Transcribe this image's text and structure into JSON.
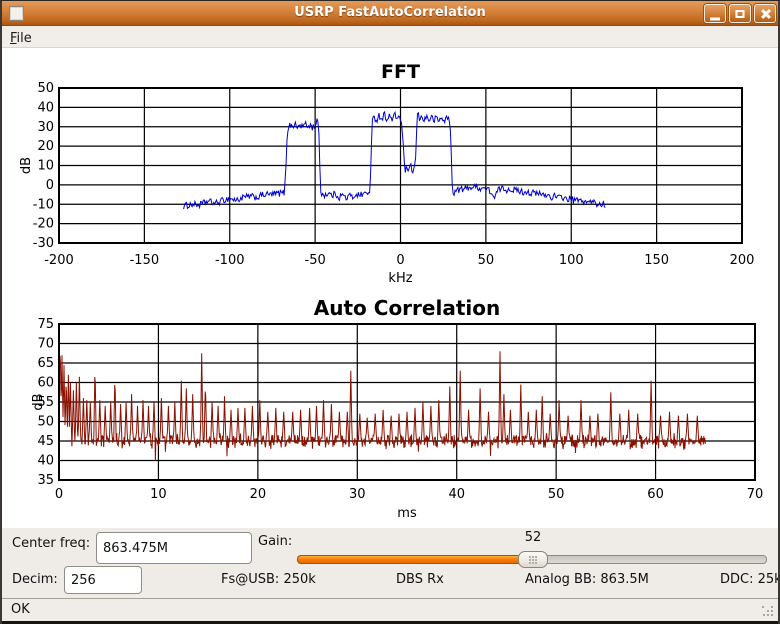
{
  "window": {
    "title": "USRP FastAutoCorrelation",
    "buttons": {
      "minimize": "minimize",
      "maximize": "maximize",
      "close": "close"
    }
  },
  "menu": {
    "file_label": "File"
  },
  "chart_data": [
    {
      "type": "line",
      "id": "fft",
      "title": "FFT",
      "xlabel": "kHz",
      "ylabel": "dB",
      "xlim": [
        -200,
        200
      ],
      "ylim": [
        -30,
        50
      ],
      "xticks": [
        -200,
        -150,
        -100,
        -50,
        0,
        50,
        100,
        150,
        200
      ],
      "yticks": [
        50,
        40,
        30,
        20,
        10,
        0,
        -10,
        -20,
        -30
      ],
      "grid": true,
      "color": "#0000cc",
      "gen": {
        "mode": "envelope",
        "x_start": -127,
        "x_end": 120,
        "step": 0.55,
        "noise": 1.7,
        "seed": 1234,
        "envelope": [
          [
            -127,
            -11
          ],
          [
            -122,
            -10
          ],
          [
            -118,
            -10.5
          ],
          [
            -113,
            -8.5
          ],
          [
            -108,
            -9.5
          ],
          [
            -104,
            -8
          ],
          [
            -100,
            -7
          ],
          [
            -96,
            -8
          ],
          [
            -92,
            -6.5
          ],
          [
            -88,
            -6
          ],
          [
            -84,
            -6.5
          ],
          [
            -80,
            -5
          ],
          [
            -76,
            -5
          ],
          [
            -72,
            -4.5
          ],
          [
            -68,
            -4
          ],
          [
            -67.3,
            5
          ],
          [
            -66.5,
            24
          ],
          [
            -66,
            29
          ],
          [
            -65,
            31
          ],
          [
            -63.5,
            30
          ],
          [
            -62,
            31.5
          ],
          [
            -60.5,
            29.5
          ],
          [
            -59,
            31
          ],
          [
            -57.5,
            30
          ],
          [
            -56,
            31.5
          ],
          [
            -54.5,
            30
          ],
          [
            -53,
            31
          ],
          [
            -51.5,
            29.5
          ],
          [
            -50,
            31
          ],
          [
            -48.8,
            33.5
          ],
          [
            -48,
            30
          ],
          [
            -47.4,
            15
          ],
          [
            -46.8,
            -2
          ],
          [
            -46.2,
            -5
          ],
          [
            -44,
            -5
          ],
          [
            -42,
            -4.5
          ],
          [
            -40,
            -5.5
          ],
          [
            -38,
            -4.5
          ],
          [
            -36,
            -6.5
          ],
          [
            -34,
            -5
          ],
          [
            -32,
            -7
          ],
          [
            -30,
            -5.5
          ],
          [
            -28,
            -6.5
          ],
          [
            -26,
            -4.5
          ],
          [
            -24,
            -5.5
          ],
          [
            -22,
            -4.5
          ],
          [
            -20,
            -4.5
          ],
          [
            -18.2,
            -4
          ],
          [
            -17.4,
            6
          ],
          [
            -16.9,
            25
          ],
          [
            -16.4,
            33
          ],
          [
            -15.5,
            35
          ],
          [
            -14,
            33.5
          ],
          [
            -12.5,
            36
          ],
          [
            -11,
            34
          ],
          [
            -9.5,
            36.5
          ],
          [
            -8,
            34
          ],
          [
            -6.5,
            35.5
          ],
          [
            -5,
            33.5
          ],
          [
            -3.5,
            36
          ],
          [
            -2,
            34.5
          ],
          [
            -0.8,
            35.5
          ],
          [
            0.2,
            34
          ],
          [
            0.9,
            29
          ],
          [
            1.5,
            21
          ],
          [
            2.2,
            12
          ],
          [
            3,
            6.5
          ],
          [
            3.8,
            9.5
          ],
          [
            4.6,
            5.5
          ],
          [
            5.4,
            8
          ],
          [
            6.2,
            10
          ],
          [
            7,
            6.5
          ],
          [
            8,
            8
          ],
          [
            8.8,
            13
          ],
          [
            9.4,
            26
          ],
          [
            10,
            38.5
          ],
          [
            10.6,
            35
          ],
          [
            11.6,
            33.8
          ],
          [
            12.8,
            35.5
          ],
          [
            14,
            33.5
          ],
          [
            15.4,
            35.2
          ],
          [
            16.8,
            33.5
          ],
          [
            18.2,
            34.8
          ],
          [
            19.6,
            33.2
          ],
          [
            21,
            34.6
          ],
          [
            22.4,
            33
          ],
          [
            23.8,
            34.5
          ],
          [
            25.2,
            33.2
          ],
          [
            26.6,
            34
          ],
          [
            27.8,
            35
          ],
          [
            28.8,
            32
          ],
          [
            29.4,
            26
          ],
          [
            29.9,
            10
          ],
          [
            30.4,
            -2.5
          ],
          [
            31.2,
            -4
          ],
          [
            33,
            -3
          ],
          [
            35,
            -2
          ],
          [
            37,
            -2.5
          ],
          [
            39,
            -1.5
          ],
          [
            41,
            -1
          ],
          [
            43,
            -1.5
          ],
          [
            45,
            -0.8
          ],
          [
            47,
            -2
          ],
          [
            49,
            -1.5
          ],
          [
            51,
            -2.5
          ],
          [
            53,
            -3.5
          ],
          [
            54.6,
            -6.5
          ],
          [
            55.4,
            -7.5
          ],
          [
            56.2,
            -4
          ],
          [
            58,
            -2
          ],
          [
            60,
            -2
          ],
          [
            62,
            -2.5
          ],
          [
            64,
            -2
          ],
          [
            66,
            -2.5
          ],
          [
            68,
            -3
          ],
          [
            70,
            -3
          ],
          [
            72,
            -4
          ],
          [
            74,
            -3
          ],
          [
            76,
            -4.5
          ],
          [
            78,
            -4
          ],
          [
            80,
            -5
          ],
          [
            82,
            -4.5
          ],
          [
            84,
            -5.5
          ],
          [
            86,
            -5
          ],
          [
            88,
            -6.5
          ],
          [
            90,
            -5.5
          ],
          [
            92,
            -7
          ],
          [
            94,
            -6
          ],
          [
            96,
            -7
          ],
          [
            98,
            -7.5
          ],
          [
            100,
            -7
          ],
          [
            102,
            -8.5
          ],
          [
            104,
            -7.5
          ],
          [
            106,
            -9
          ],
          [
            108,
            -8
          ],
          [
            110,
            -9.5
          ],
          [
            112,
            -8.5
          ],
          [
            114,
            -9.5
          ],
          [
            116,
            -10.5
          ],
          [
            118,
            -9.5
          ],
          [
            120,
            -10.5
          ]
        ]
      }
    },
    {
      "type": "line",
      "id": "autocorr",
      "title": "Auto Correlation",
      "xlabel": "ms",
      "ylabel": "dB",
      "xlim": [
        0,
        70
      ],
      "ylim": [
        35,
        75
      ],
      "xticks": [
        0,
        10,
        20,
        30,
        40,
        50,
        60,
        70
      ],
      "yticks": [
        75,
        70,
        65,
        60,
        55,
        50,
        45,
        40,
        35
      ],
      "grid": true,
      "color": "#8b1000",
      "gen": {
        "mode": "spikes",
        "x_start": 0,
        "x_end": 65,
        "step": 0.05,
        "seed": 99,
        "baseline": 42.8,
        "baseline_spread": 2.2,
        "dip_prob": 0.02,
        "dip_depth": 2.8,
        "decay_peak": 75,
        "decay_tau": 0.28,
        "spike_width": 0.12,
        "spike_base": 46,
        "spikes": [
          [
            0.12,
            71
          ],
          [
            0.3,
            67
          ],
          [
            0.5,
            64.5
          ],
          [
            0.72,
            61.5
          ],
          [
            0.95,
            62
          ],
          [
            1.15,
            60
          ],
          [
            1.45,
            58
          ],
          [
            1.75,
            60
          ],
          [
            2.05,
            61.5
          ],
          [
            2.45,
            56
          ],
          [
            2.8,
            55.5
          ],
          [
            3.15,
            55
          ],
          [
            3.62,
            64.5
          ],
          [
            4.1,
            55.5
          ],
          [
            4.65,
            54
          ],
          [
            5.2,
            55
          ],
          [
            5.62,
            62
          ],
          [
            6.2,
            54.5
          ],
          [
            6.75,
            55
          ],
          [
            7.3,
            57
          ],
          [
            7.9,
            54
          ],
          [
            8.45,
            55.5
          ],
          [
            9.0,
            54
          ],
          [
            9.55,
            55.2
          ],
          [
            10.3,
            56
          ],
          [
            11.0,
            54
          ],
          [
            11.65,
            55
          ],
          [
            12.3,
            60.5
          ],
          [
            12.8,
            58.5
          ],
          [
            13.45,
            57
          ],
          [
            14.35,
            67.5
          ],
          [
            14.72,
            60
          ],
          [
            15.4,
            55
          ],
          [
            16.0,
            54
          ],
          [
            16.65,
            56.5
          ],
          [
            17.3,
            53
          ],
          [
            18.0,
            53.5
          ],
          [
            18.7,
            53.5
          ],
          [
            19.45,
            54
          ],
          [
            20.2,
            55.5
          ],
          [
            21.0,
            52.5
          ],
          [
            21.8,
            53.5
          ],
          [
            22.6,
            52.5
          ],
          [
            23.5,
            52.5
          ],
          [
            24.3,
            53
          ],
          [
            25.2,
            53.5
          ],
          [
            25.9,
            54
          ],
          [
            26.6,
            55.5
          ],
          [
            27.4,
            54.5
          ],
          [
            28.2,
            52.5
          ],
          [
            29.0,
            52.5
          ],
          [
            29.35,
            63
          ],
          [
            30.25,
            52
          ],
          [
            31.0,
            51
          ],
          [
            31.8,
            52
          ],
          [
            32.6,
            53
          ],
          [
            33.4,
            51.5
          ],
          [
            34.2,
            52
          ],
          [
            35.0,
            52.5
          ],
          [
            35.8,
            53.5
          ],
          [
            36.6,
            55
          ],
          [
            37.4,
            54
          ],
          [
            38.2,
            55.5
          ],
          [
            39.3,
            59
          ],
          [
            40.35,
            63
          ],
          [
            41.2,
            53
          ],
          [
            42.35,
            58.5
          ],
          [
            43.2,
            52.5
          ],
          [
            44.35,
            68
          ],
          [
            44.75,
            57
          ],
          [
            45.4,
            53
          ],
          [
            46.45,
            59.5
          ],
          [
            47.2,
            52.5
          ],
          [
            48.0,
            53
          ],
          [
            48.6,
            56.5
          ],
          [
            49.4,
            52
          ],
          [
            50.3,
            55.5
          ],
          [
            51.2,
            51.5
          ],
          [
            52.5,
            55.5
          ],
          [
            53.4,
            51.5
          ],
          [
            54.2,
            52
          ],
          [
            55.5,
            57.5
          ],
          [
            56.4,
            52
          ],
          [
            57.3,
            53
          ],
          [
            58.2,
            52
          ],
          [
            59.55,
            60.5
          ],
          [
            60.5,
            51.5
          ],
          [
            61.4,
            52.5
          ],
          [
            62.3,
            51.5
          ],
          [
            63.2,
            52
          ],
          [
            64.2,
            51.5
          ]
        ]
      }
    }
  ],
  "controls": {
    "center_freq_label": "Center freq:",
    "center_freq_value": "863.475M",
    "gain_label": "Gain:",
    "gain_value": "52",
    "decim_label": "Decim:",
    "decim_value": "256",
    "fs_usb_text": "Fs@USB: 250k",
    "dbs_rx_text": "DBS Rx",
    "analog_bb_text": "Analog BB: 863.5M",
    "ddc_text": "DDC: 25k"
  },
  "statusbar": {
    "text": "OK"
  },
  "colors": {
    "fft_trace": "#0000cc",
    "ac_trace": "#8b1000",
    "titlebar_orange": "#d5813a",
    "slider_orange": "#f57900",
    "panel_bg": "#efebe7"
  }
}
